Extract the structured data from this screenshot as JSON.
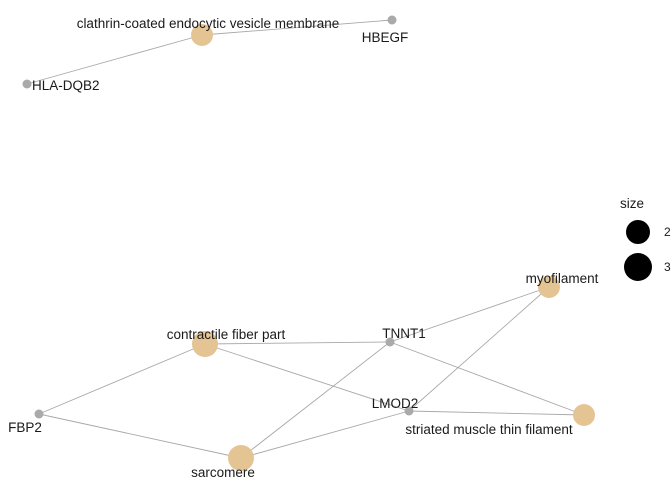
{
  "network": {
    "colors": {
      "category_node": "#E5C494",
      "gene_node": "#AAAAAA",
      "edge": "#A8A8A8",
      "legend_circle": "#000000"
    },
    "nodes": [
      {
        "id": "clathrin",
        "label": "clathrin-coated endocytic vesicle membrane",
        "kind": "category",
        "size": 2
      },
      {
        "id": "HBEGF",
        "label": "HBEGF",
        "kind": "gene"
      },
      {
        "id": "HLA-DQB2",
        "label": "HLA-DQB2",
        "kind": "gene"
      },
      {
        "id": "myofilament",
        "label": "myofilament",
        "kind": "category",
        "size": 2
      },
      {
        "id": "contractile",
        "label": "contractile fiber part",
        "kind": "category",
        "size": 3
      },
      {
        "id": "TNNT1",
        "label": "TNNT1",
        "kind": "gene"
      },
      {
        "id": "LMOD2",
        "label": "LMOD2",
        "kind": "gene"
      },
      {
        "id": "striated",
        "label": "striated muscle thin filament",
        "kind": "category",
        "size": 2
      },
      {
        "id": "FBP2",
        "label": "FBP2",
        "kind": "gene"
      },
      {
        "id": "sarcomere",
        "label": "sarcomere",
        "kind": "category",
        "size": 3
      }
    ],
    "edges": [
      [
        "clathrin",
        "HBEGF"
      ],
      [
        "clathrin",
        "HLA-DQB2"
      ],
      [
        "contractile",
        "TNNT1"
      ],
      [
        "contractile",
        "LMOD2"
      ],
      [
        "contractile",
        "FBP2"
      ],
      [
        "sarcomere",
        "FBP2"
      ],
      [
        "sarcomere",
        "TNNT1"
      ],
      [
        "sarcomere",
        "LMOD2"
      ],
      [
        "myofilament",
        "TNNT1"
      ],
      [
        "myofilament",
        "LMOD2"
      ],
      [
        "striated",
        "TNNT1"
      ],
      [
        "striated",
        "LMOD2"
      ]
    ]
  },
  "legend": {
    "title": "size",
    "items": [
      {
        "value": 2,
        "label": "2"
      },
      {
        "value": 3,
        "label": "3"
      }
    ]
  }
}
